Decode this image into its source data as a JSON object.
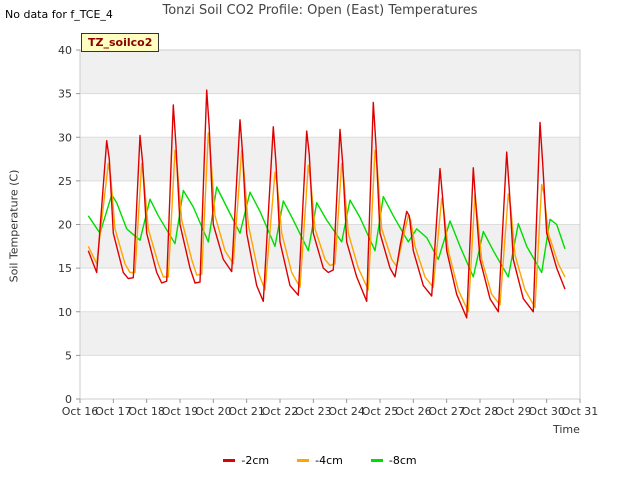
{
  "nodata_text": "No data for f_TCE_4",
  "badge_text": "TZ_soilco2",
  "chart_data": {
    "type": "line",
    "title": "Tonzi Soil CO2 Profile: Open (East) Temperatures",
    "xlabel": "Time",
    "ylabel": "Soil Temperature (C)",
    "xlim": [
      16,
      31
    ],
    "ylim": [
      0,
      40
    ],
    "yticks": [
      0,
      5,
      10,
      15,
      20,
      25,
      30,
      35,
      40
    ],
    "xticks": [
      {
        "v": 16,
        "label": "Oct 16"
      },
      {
        "v": 17,
        "label": "Oct 17"
      },
      {
        "v": 18,
        "label": "Oct 18"
      },
      {
        "v": 19,
        "label": "Oct 19"
      },
      {
        "v": 20,
        "label": "Oct 20"
      },
      {
        "v": 21,
        "label": "Oct 21"
      },
      {
        "v": 22,
        "label": "Oct 22"
      },
      {
        "v": 23,
        "label": "Oct 23"
      },
      {
        "v": 24,
        "label": "Oct 24"
      },
      {
        "v": 25,
        "label": "Oct 25"
      },
      {
        "v": 26,
        "label": "Oct 26"
      },
      {
        "v": 27,
        "label": "Oct 27"
      },
      {
        "v": 28,
        "label": "Oct 28"
      },
      {
        "v": 29,
        "label": "Oct 29"
      },
      {
        "v": 30,
        "label": "Oct 30"
      },
      {
        "v": 31,
        "label": "Oct 31"
      }
    ],
    "series": [
      {
        "name": "-2cm",
        "color": "#dd0000",
        "x": [
          16.25,
          16.5,
          16.8,
          16.88,
          17.0,
          17.3,
          17.45,
          17.6,
          17.8,
          17.88,
          18.0,
          18.3,
          18.45,
          18.6,
          18.8,
          18.88,
          19.0,
          19.3,
          19.45,
          19.6,
          19.8,
          19.88,
          20.0,
          20.3,
          20.55,
          20.8,
          20.88,
          21.0,
          21.3,
          21.5,
          21.8,
          21.88,
          22.0,
          22.3,
          22.55,
          22.8,
          22.88,
          23.0,
          23.3,
          23.45,
          23.6,
          23.8,
          23.88,
          24.0,
          24.3,
          24.6,
          24.8,
          24.88,
          25.0,
          25.3,
          25.45,
          25.6,
          25.8,
          25.88,
          26.0,
          26.3,
          26.55,
          26.8,
          26.88,
          27.0,
          27.3,
          27.6,
          27.8,
          27.88,
          28.0,
          28.3,
          28.55,
          28.8,
          28.88,
          29.0,
          29.3,
          29.6,
          29.8,
          29.88,
          30.0,
          30.3,
          30.55
        ],
        "y": [
          17.0,
          14.5,
          29.6,
          27.5,
          19.0,
          14.5,
          13.8,
          13.9,
          30.2,
          27.0,
          19.0,
          14.5,
          13.3,
          13.5,
          33.7,
          29.0,
          20.0,
          15.0,
          13.3,
          13.4,
          35.4,
          31.0,
          20.0,
          16.0,
          14.6,
          32.0,
          28.0,
          19.0,
          13.0,
          11.2,
          31.2,
          27.0,
          18.0,
          13.0,
          11.9,
          30.7,
          28.0,
          19.0,
          15.0,
          14.5,
          14.8,
          30.9,
          27.0,
          18.0,
          14.0,
          11.2,
          34.0,
          29.0,
          19.0,
          15.0,
          14.0,
          17.5,
          21.5,
          21.0,
          17.0,
          13.0,
          11.8,
          26.4,
          23.0,
          17.0,
          12.0,
          9.3,
          26.5,
          22.0,
          16.0,
          11.5,
          10.0,
          28.3,
          24.0,
          16.0,
          11.5,
          10.0,
          31.7,
          27.0,
          19.0,
          15.0,
          12.6
        ]
      },
      {
        "name": "-4cm",
        "color": "#ffa500",
        "x": [
          16.25,
          16.5,
          16.85,
          16.92,
          17.05,
          17.35,
          17.5,
          17.65,
          17.85,
          17.92,
          18.05,
          18.35,
          18.5,
          18.65,
          18.85,
          18.92,
          19.05,
          19.35,
          19.5,
          19.65,
          19.85,
          19.92,
          20.05,
          20.35,
          20.6,
          20.85,
          20.92,
          21.05,
          21.35,
          21.55,
          21.85,
          21.92,
          22.05,
          22.35,
          22.6,
          22.85,
          22.92,
          23.05,
          23.35,
          23.5,
          23.65,
          23.85,
          23.92,
          24.05,
          24.35,
          24.65,
          24.85,
          24.92,
          25.05,
          25.35,
          25.5,
          25.65,
          25.85,
          25.92,
          26.05,
          26.35,
          26.6,
          26.85,
          26.92,
          27.05,
          27.35,
          27.65,
          27.85,
          27.92,
          28.05,
          28.35,
          28.6,
          28.85,
          28.92,
          29.05,
          29.35,
          29.65,
          29.85,
          29.92,
          30.05,
          30.35,
          30.55
        ],
        "y": [
          17.5,
          15.5,
          27.0,
          25.5,
          19.5,
          15.5,
          14.5,
          14.5,
          27.0,
          25.0,
          19.5,
          15.5,
          14.0,
          14.0,
          28.5,
          26.5,
          20.5,
          16.0,
          14.2,
          14.3,
          30.5,
          28.0,
          21.0,
          17.0,
          15.5,
          28.5,
          26.0,
          20.0,
          14.5,
          12.5,
          26.0,
          24.5,
          19.0,
          14.5,
          12.8,
          26.8,
          25.0,
          19.5,
          16.0,
          15.3,
          15.5,
          27.0,
          25.0,
          19.0,
          15.0,
          12.5,
          28.5,
          26.5,
          19.5,
          16.0,
          15.2,
          17.8,
          21.0,
          20.5,
          17.5,
          14.0,
          12.8,
          23.0,
          21.5,
          17.0,
          12.5,
          10.0,
          23.5,
          21.0,
          16.0,
          12.0,
          10.8,
          23.5,
          22.0,
          16.5,
          12.5,
          10.5,
          24.6,
          23.5,
          19.0,
          15.5,
          14.0
        ]
      },
      {
        "name": "-8cm",
        "color": "#00dd00",
        "x": [
          16.25,
          16.6,
          16.95,
          17.1,
          17.4,
          17.8,
          18.1,
          18.35,
          18.85,
          19.1,
          19.4,
          19.85,
          20.1,
          20.4,
          20.8,
          21.1,
          21.4,
          21.85,
          22.1,
          22.4,
          22.85,
          23.1,
          23.4,
          23.85,
          24.1,
          24.4,
          24.85,
          25.1,
          25.4,
          25.85,
          26.1,
          26.4,
          26.75,
          27.1,
          27.4,
          27.8,
          28.1,
          28.4,
          28.85,
          29.15,
          29.4,
          29.85,
          30.1,
          30.3,
          30.55
        ],
        "y": [
          21.0,
          19.0,
          23.4,
          22.5,
          19.5,
          18.2,
          22.9,
          21.0,
          17.8,
          23.9,
          22.0,
          18.0,
          24.3,
          22.0,
          19.0,
          23.7,
          21.5,
          17.5,
          22.7,
          20.5,
          17.0,
          22.5,
          20.5,
          18.0,
          22.8,
          20.8,
          17.0,
          23.2,
          21.0,
          18.0,
          19.5,
          18.5,
          16.0,
          20.4,
          17.5,
          14.0,
          19.2,
          17.0,
          14.0,
          20.1,
          17.5,
          14.5,
          20.6,
          20.0,
          17.2
        ]
      }
    ]
  }
}
